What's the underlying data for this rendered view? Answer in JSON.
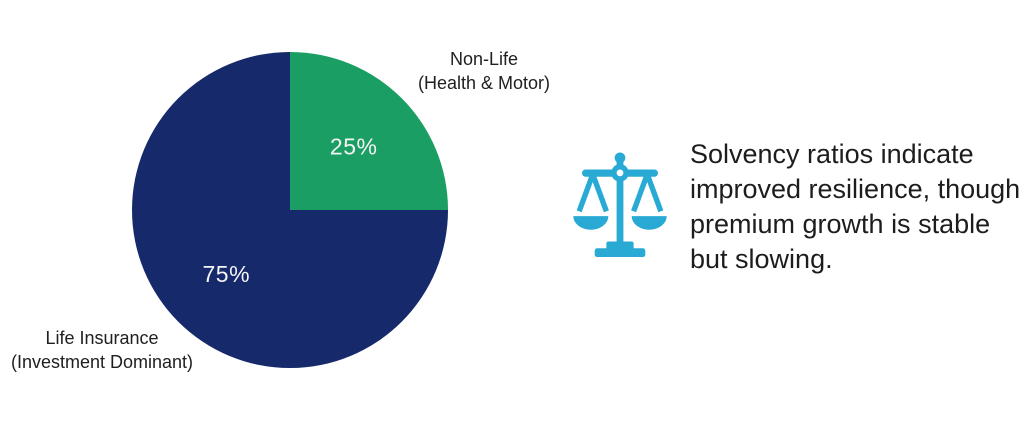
{
  "page": {
    "background": "#ffffff"
  },
  "chart_data": {
    "type": "pie",
    "title": "",
    "categories": [
      "Non-Life (Health & Motor)",
      "Life Insurance (Investment Dominant)"
    ],
    "values": [
      25,
      75
    ],
    "slices": [
      {
        "label": "Non-Life",
        "sublabel": "(Health & Motor)",
        "value": 25,
        "value_label": "25%",
        "color": "#1a9e64"
      },
      {
        "label": "Life Insurance",
        "sublabel": "(Investment Dominant)",
        "value": 75,
        "value_label": "75%",
        "color": "#16296b"
      }
    ],
    "start_angle_deg": 0,
    "direction": "clockwise",
    "value_label_color": "#f4f4f4",
    "legend_position": "none",
    "labels_outside": true
  },
  "insight": {
    "icon": "balance-scale-icon",
    "icon_color": "#29aad5",
    "text": "Solvency ratios indicate improved resilience, though premium growth is stable but slowing.",
    "lines": [
      "Solvency ratios indicate",
      "improved resilience, though",
      "premium growth is stable",
      "but slowing."
    ]
  }
}
